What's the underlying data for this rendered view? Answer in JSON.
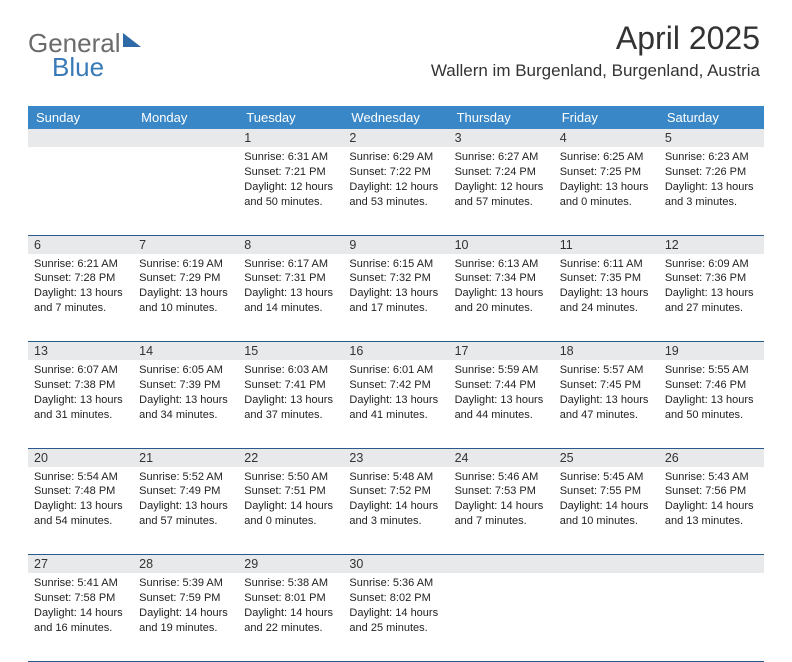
{
  "brand": {
    "part1": "General",
    "part2": "Blue"
  },
  "header": {
    "month_title": "April 2025",
    "location": "Wallern im Burgenland, Burgenland, Austria"
  },
  "colors": {
    "header_bg": "#3a87c7",
    "header_text": "#ffffff",
    "daynum_bg": "#e8e9ea",
    "row_divider": "#2a5a8a",
    "body_bg": "#ffffff",
    "text": "#222222",
    "brand_gray": "#6b6b6b",
    "brand_blue": "#3a7ab8"
  },
  "weekdays": [
    "Sunday",
    "Monday",
    "Tuesday",
    "Wednesday",
    "Thursday",
    "Friday",
    "Saturday"
  ],
  "weeks": [
    {
      "nums": [
        "",
        "",
        "1",
        "2",
        "3",
        "4",
        "5"
      ],
      "cells": [
        null,
        null,
        {
          "sunrise": "Sunrise: 6:31 AM",
          "sunset": "Sunset: 7:21 PM",
          "dl1": "Daylight: 12 hours",
          "dl2": "and 50 minutes."
        },
        {
          "sunrise": "Sunrise: 6:29 AM",
          "sunset": "Sunset: 7:22 PM",
          "dl1": "Daylight: 12 hours",
          "dl2": "and 53 minutes."
        },
        {
          "sunrise": "Sunrise: 6:27 AM",
          "sunset": "Sunset: 7:24 PM",
          "dl1": "Daylight: 12 hours",
          "dl2": "and 57 minutes."
        },
        {
          "sunrise": "Sunrise: 6:25 AM",
          "sunset": "Sunset: 7:25 PM",
          "dl1": "Daylight: 13 hours",
          "dl2": "and 0 minutes."
        },
        {
          "sunrise": "Sunrise: 6:23 AM",
          "sunset": "Sunset: 7:26 PM",
          "dl1": "Daylight: 13 hours",
          "dl2": "and 3 minutes."
        }
      ]
    },
    {
      "nums": [
        "6",
        "7",
        "8",
        "9",
        "10",
        "11",
        "12"
      ],
      "cells": [
        {
          "sunrise": "Sunrise: 6:21 AM",
          "sunset": "Sunset: 7:28 PM",
          "dl1": "Daylight: 13 hours",
          "dl2": "and 7 minutes."
        },
        {
          "sunrise": "Sunrise: 6:19 AM",
          "sunset": "Sunset: 7:29 PM",
          "dl1": "Daylight: 13 hours",
          "dl2": "and 10 minutes."
        },
        {
          "sunrise": "Sunrise: 6:17 AM",
          "sunset": "Sunset: 7:31 PM",
          "dl1": "Daylight: 13 hours",
          "dl2": "and 14 minutes."
        },
        {
          "sunrise": "Sunrise: 6:15 AM",
          "sunset": "Sunset: 7:32 PM",
          "dl1": "Daylight: 13 hours",
          "dl2": "and 17 minutes."
        },
        {
          "sunrise": "Sunrise: 6:13 AM",
          "sunset": "Sunset: 7:34 PM",
          "dl1": "Daylight: 13 hours",
          "dl2": "and 20 minutes."
        },
        {
          "sunrise": "Sunrise: 6:11 AM",
          "sunset": "Sunset: 7:35 PM",
          "dl1": "Daylight: 13 hours",
          "dl2": "and 24 minutes."
        },
        {
          "sunrise": "Sunrise: 6:09 AM",
          "sunset": "Sunset: 7:36 PM",
          "dl1": "Daylight: 13 hours",
          "dl2": "and 27 minutes."
        }
      ]
    },
    {
      "nums": [
        "13",
        "14",
        "15",
        "16",
        "17",
        "18",
        "19"
      ],
      "cells": [
        {
          "sunrise": "Sunrise: 6:07 AM",
          "sunset": "Sunset: 7:38 PM",
          "dl1": "Daylight: 13 hours",
          "dl2": "and 31 minutes."
        },
        {
          "sunrise": "Sunrise: 6:05 AM",
          "sunset": "Sunset: 7:39 PM",
          "dl1": "Daylight: 13 hours",
          "dl2": "and 34 minutes."
        },
        {
          "sunrise": "Sunrise: 6:03 AM",
          "sunset": "Sunset: 7:41 PM",
          "dl1": "Daylight: 13 hours",
          "dl2": "and 37 minutes."
        },
        {
          "sunrise": "Sunrise: 6:01 AM",
          "sunset": "Sunset: 7:42 PM",
          "dl1": "Daylight: 13 hours",
          "dl2": "and 41 minutes."
        },
        {
          "sunrise": "Sunrise: 5:59 AM",
          "sunset": "Sunset: 7:44 PM",
          "dl1": "Daylight: 13 hours",
          "dl2": "and 44 minutes."
        },
        {
          "sunrise": "Sunrise: 5:57 AM",
          "sunset": "Sunset: 7:45 PM",
          "dl1": "Daylight: 13 hours",
          "dl2": "and 47 minutes."
        },
        {
          "sunrise": "Sunrise: 5:55 AM",
          "sunset": "Sunset: 7:46 PM",
          "dl1": "Daylight: 13 hours",
          "dl2": "and 50 minutes."
        }
      ]
    },
    {
      "nums": [
        "20",
        "21",
        "22",
        "23",
        "24",
        "25",
        "26"
      ],
      "cells": [
        {
          "sunrise": "Sunrise: 5:54 AM",
          "sunset": "Sunset: 7:48 PM",
          "dl1": "Daylight: 13 hours",
          "dl2": "and 54 minutes."
        },
        {
          "sunrise": "Sunrise: 5:52 AM",
          "sunset": "Sunset: 7:49 PM",
          "dl1": "Daylight: 13 hours",
          "dl2": "and 57 minutes."
        },
        {
          "sunrise": "Sunrise: 5:50 AM",
          "sunset": "Sunset: 7:51 PM",
          "dl1": "Daylight: 14 hours",
          "dl2": "and 0 minutes."
        },
        {
          "sunrise": "Sunrise: 5:48 AM",
          "sunset": "Sunset: 7:52 PM",
          "dl1": "Daylight: 14 hours",
          "dl2": "and 3 minutes."
        },
        {
          "sunrise": "Sunrise: 5:46 AM",
          "sunset": "Sunset: 7:53 PM",
          "dl1": "Daylight: 14 hours",
          "dl2": "and 7 minutes."
        },
        {
          "sunrise": "Sunrise: 5:45 AM",
          "sunset": "Sunset: 7:55 PM",
          "dl1": "Daylight: 14 hours",
          "dl2": "and 10 minutes."
        },
        {
          "sunrise": "Sunrise: 5:43 AM",
          "sunset": "Sunset: 7:56 PM",
          "dl1": "Daylight: 14 hours",
          "dl2": "and 13 minutes."
        }
      ]
    },
    {
      "nums": [
        "27",
        "28",
        "29",
        "30",
        "",
        "",
        ""
      ],
      "cells": [
        {
          "sunrise": "Sunrise: 5:41 AM",
          "sunset": "Sunset: 7:58 PM",
          "dl1": "Daylight: 14 hours",
          "dl2": "and 16 minutes."
        },
        {
          "sunrise": "Sunrise: 5:39 AM",
          "sunset": "Sunset: 7:59 PM",
          "dl1": "Daylight: 14 hours",
          "dl2": "and 19 minutes."
        },
        {
          "sunrise": "Sunrise: 5:38 AM",
          "sunset": "Sunset: 8:01 PM",
          "dl1": "Daylight: 14 hours",
          "dl2": "and 22 minutes."
        },
        {
          "sunrise": "Sunrise: 5:36 AM",
          "sunset": "Sunset: 8:02 PM",
          "dl1": "Daylight: 14 hours",
          "dl2": "and 25 minutes."
        },
        null,
        null,
        null
      ]
    }
  ]
}
